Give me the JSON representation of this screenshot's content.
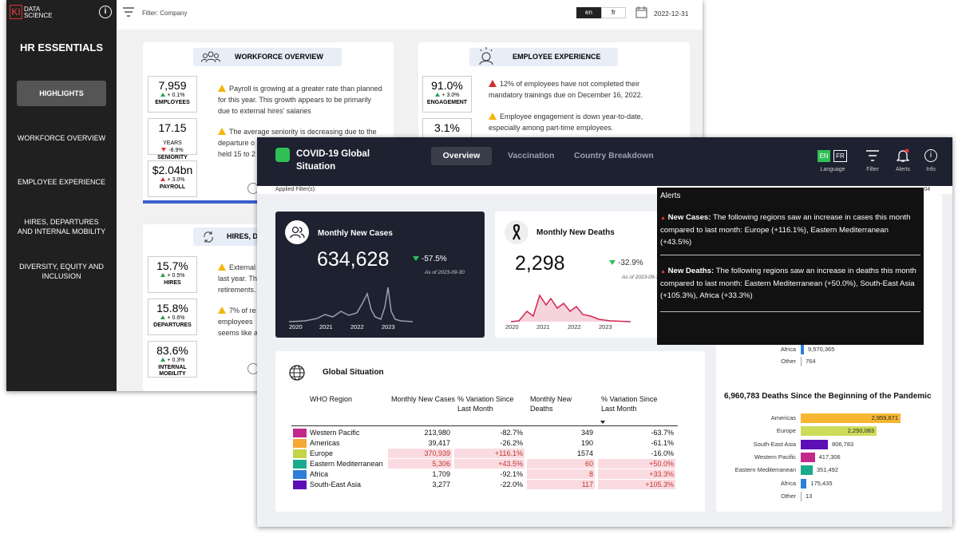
{
  "hr": {
    "logo": {
      "mark": "KI",
      "text": "DATA SCIENCE"
    },
    "title": "HR ESSENTIALS",
    "nav": [
      "HIGHLIGHTS",
      "WORKFORCE OVERVIEW",
      "EMPLOYEE EXPERIENCE",
      "HIRES, DEPARTURES AND INTERNAL MOBILITY",
      "DIVERSITY, EQUITY AND INCLUSION"
    ],
    "filter": "Filter: Company",
    "languages": [
      "en",
      "fr"
    ],
    "date": "2022-12-31",
    "workforce": {
      "title": "WORKFORCE OVERVIEW",
      "kpis": [
        {
          "value": "7,959",
          "change": "+ 0.1%",
          "label": "EMPLOYEES"
        },
        {
          "value": "17.15",
          "unit": "YEARS",
          "change": "-8.9%",
          "label": "SENIORITY"
        },
        {
          "value": "$2.04bn",
          "change": "+ 3.0%",
          "label": "PAYROLL"
        }
      ],
      "notes": [
        [
          "Payroll is growing at a greater rate than planned",
          "for this year. This growth appears to be primarily",
          "due to external hires' salaries"
        ],
        [
          "The average seniority is decreasing due to the",
          "departure o",
          "held 15 to 2"
        ]
      ]
    },
    "experience": {
      "title": "EMPLOYEE EXPERIENCE",
      "kpis": [
        {
          "value": "91.0%",
          "change": "+ 3.0%",
          "label": "ENGAGEMENT"
        },
        {
          "value": "3.1%"
        }
      ],
      "notes": [
        [
          "12% of employees have not completed their",
          "mandatory trainings due on December 16, 2022."
        ],
        [
          "Employee engagement is down year-to-date,",
          "especially among part-time employees."
        ]
      ]
    },
    "hires": {
      "title": "HIRES, DE",
      "kpis": [
        {
          "value": "15.7%",
          "change": "+ 0.5%",
          "label": "HIRES"
        },
        {
          "value": "15.8%",
          "change": "+ 0.6%",
          "label": "DEPARTURES"
        },
        {
          "value": "83.6%",
          "change": "+ 0.3%",
          "label": "INTERNAL MOBILITY"
        }
      ],
      "notes": [
        [
          "External",
          "last year. Th",
          "retirements."
        ],
        [
          "7% of re",
          "employees",
          "seems like a"
        ]
      ]
    }
  },
  "covid": {
    "title": "COVID-19 Global Situation",
    "tabs": [
      "Overview",
      "Vaccination",
      "Country Breakdown"
    ],
    "languages": [
      "EN",
      "FR"
    ],
    "tools": [
      "Language",
      "Filter",
      "Alerts",
      "Info"
    ],
    "applied_filters": "Applied Filter(s):",
    "date_fragment": "-04",
    "cases_card": {
      "title": "Monthly New Cases",
      "value": "634,628",
      "change": "-57.5%",
      "as_of": "As of 2023-09-30",
      "years": [
        "2020",
        "2021",
        "2022",
        "2023"
      ]
    },
    "deaths_card": {
      "title": "Monthly New Deaths",
      "value": "2,298",
      "change": "-32.9%",
      "as_of": "As of 2023-09-3",
      "years": [
        "2020",
        "2021",
        "2022",
        "2023"
      ]
    },
    "table": {
      "title": "Global Situation",
      "columns": [
        "WHO Region",
        "Monthly New Cases",
        "% Variation Since Last Month",
        "Monthly New Deaths",
        "% Variation Since Last Month"
      ],
      "colors": [
        "#c2298a",
        "#f7a734",
        "#c5d44a",
        "#1aab8a",
        "#2f7ed8",
        "#5b0fb5"
      ],
      "rows": [
        [
          "Western Pacific",
          "213,980",
          "-82.7%",
          "349",
          "-63.7%"
        ],
        [
          "Americas",
          "39,417",
          "-26.2%",
          "190",
          "-61.1%"
        ],
        [
          "Europe",
          "370,939",
          "+116.1%",
          "1574",
          "-16.0%"
        ],
        [
          "Eastern Mediterranean",
          "5,306",
          "+43.5%",
          "60",
          "+50.0%"
        ],
        [
          "Africa",
          "1,709",
          "-92.1%",
          "8",
          "+33.3%"
        ],
        [
          "South-East Asia",
          "3,277",
          "-22.0%",
          "117",
          "+105.3%"
        ]
      ],
      "highlight": [
        [
          false,
          false,
          false,
          false
        ],
        [
          false,
          false,
          false,
          false
        ],
        [
          true,
          true,
          false,
          false
        ],
        [
          true,
          true,
          true,
          true
        ],
        [
          false,
          false,
          true,
          true
        ],
        [
          false,
          false,
          true,
          true
        ]
      ]
    },
    "cases_chart": {
      "type": "bar",
      "categories": [
        "Africa",
        "Other"
      ],
      "values": [
        9570365,
        764
      ],
      "value_labels": [
        "9,570,365",
        "764"
      ],
      "colors": [
        "#2f7ed8",
        "#9aa0a6"
      ]
    },
    "deaths_chart": {
      "type": "bar",
      "title": "6,960,783 Deaths Since the Beginning of the Pandemic",
      "categories": [
        "Americas",
        "Europe",
        "South-East Asia",
        "Western Pacific",
        "Eastern Mediterranean",
        "Africa",
        "Other"
      ],
      "values": [
        2959671,
        2250083,
        806783,
        417306,
        351492,
        175435,
        13
      ],
      "value_labels": [
        "2,959,671",
        "2,250,083",
        "806,783",
        "417,306",
        "351,492",
        "175,435",
        "13"
      ],
      "colors": [
        "#f7b733",
        "#cddc5a",
        "#5b0fb5",
        "#c2298a",
        "#1aab8a",
        "#2f7ed8",
        "#9aa0a6"
      ]
    },
    "alerts": {
      "title": "Alerts",
      "items": [
        {
          "head": "New Cases:",
          "text": "The following regions saw an increase in cases this month compared to last month: Europe (+116.1%), Eastern Mediterranean (+43.5%)"
        },
        {
          "head": "New Deaths:",
          "text": "The following regions saw an increase in deaths this month compared to last month: Eastern Mediterranean (+50.0%), South-East Asia (+105.3%), Africa (+33.3%)"
        }
      ]
    }
  }
}
